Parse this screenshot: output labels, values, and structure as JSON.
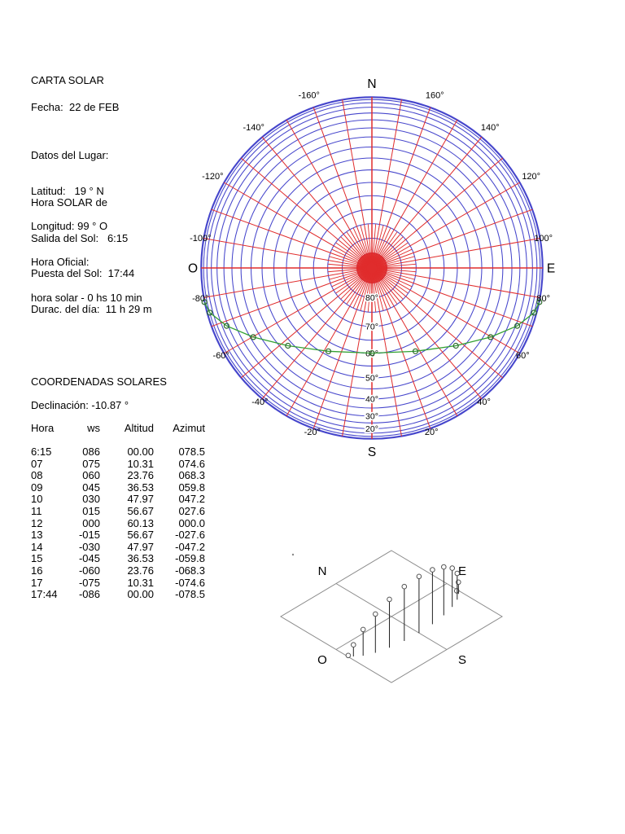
{
  "info": {
    "title": "CARTA SOLAR",
    "fecha": "Fecha:  22 de FEB",
    "lugar": [
      "Datos del Lugar:",
      "Latitud:   19 ° N",
      "Longitud: 99 ° O"
    ],
    "horario": [
      "Hora SOLAR de",
      "Salida del Sol:   6:15",
      "Puesta del Sol:  17:44",
      "Durac. del día:  11 h 29 m"
    ],
    "oficial": [
      "Hora Oficial:",
      "hora solar - 0 hs 10 min"
    ]
  },
  "coordinates": {
    "title": "COORDENADAS SOLARES",
    "declinacion": "Declinación: -10.87 °"
  },
  "solar_table": {
    "headers": [
      "Hora",
      "ws",
      "Altitud",
      "Azimut"
    ],
    "rows": [
      [
        "6:15",
        "086",
        "00.00",
        "078.5"
      ],
      [
        "07",
        "075",
        "10.31",
        "074.6"
      ],
      [
        "08",
        "060",
        "23.76",
        "068.3"
      ],
      [
        "09",
        "045",
        "36.53",
        "059.8"
      ],
      [
        "10",
        "030",
        "47.97",
        "047.2"
      ],
      [
        "11",
        "015",
        "56.67",
        "027.6"
      ],
      [
        "12",
        "000",
        "60.13",
        "000.0"
      ],
      [
        "13",
        "-015",
        "56.67",
        "-027.6"
      ],
      [
        "14",
        "-030",
        "47.97",
        "-047.2"
      ],
      [
        "15",
        "-045",
        "36.53",
        "-059.8"
      ],
      [
        "16",
        "-060",
        "23.76",
        "-068.3"
      ],
      [
        "17",
        "-075",
        "10.31",
        "-074.6"
      ],
      [
        "17:44",
        "-086",
        "00.00",
        "-078.5"
      ]
    ]
  },
  "chart_data": [
    {
      "name": "sun-path-polar",
      "type": "line",
      "projection": "polar, r = R*cos(altitude), azimuth 0° at S, positive toward E",
      "cardinals": {
        "north": "N",
        "east": "E",
        "south": "S",
        "west": "O"
      },
      "azimuth_labels": [
        {
          "az": -160,
          "label": "-160°"
        },
        {
          "az": -140,
          "label": "-140°"
        },
        {
          "az": -120,
          "label": "-120°"
        },
        {
          "az": -100,
          "label": "-100°"
        },
        {
          "az": -80,
          "label": "-80°"
        },
        {
          "az": -60,
          "label": "-60°"
        },
        {
          "az": -40,
          "label": "-40°"
        },
        {
          "az": -20,
          "label": "-20°"
        },
        {
          "az": 20,
          "label": "20°"
        },
        {
          "az": 40,
          "label": "40°"
        },
        {
          "az": 60,
          "label": "60°"
        },
        {
          "az": 80,
          "label": "80°"
        },
        {
          "az": 100,
          "label": "100°"
        },
        {
          "az": 120,
          "label": "120°"
        },
        {
          "az": 140,
          "label": "140°"
        },
        {
          "az": 160,
          "label": "160°"
        }
      ],
      "altitude_ring_labels": [
        {
          "alt": 80,
          "label": "80°"
        },
        {
          "alt": 70,
          "label": "70°"
        },
        {
          "alt": 60,
          "label": "60°"
        },
        {
          "alt": 50,
          "label": "50°"
        },
        {
          "alt": 40,
          "label": "40°"
        },
        {
          "alt": 30,
          "label": "30°"
        },
        {
          "alt": 20,
          "label": "20°"
        }
      ],
      "altitude_rings_step_deg": 5,
      "azimuth_rays_step_deg": 10,
      "series": [
        {
          "name": "sun position by hour",
          "hours": [
            "6:15",
            "07",
            "08",
            "09",
            "10",
            "11",
            "12",
            "13",
            "14",
            "15",
            "16",
            "17",
            "17:44"
          ],
          "azimuth_deg": [
            78.5,
            74.6,
            68.3,
            59.8,
            47.2,
            27.6,
            0.0,
            -27.6,
            -47.2,
            -59.8,
            -68.3,
            -74.6,
            -78.5
          ],
          "altitude_deg": [
            0.0,
            10.31,
            23.76,
            36.53,
            47.97,
            56.67,
            60.13,
            56.67,
            47.97,
            36.53,
            23.76,
            10.31,
            0.0
          ]
        }
      ],
      "colors": {
        "rings": "#4646cc",
        "rays": "#e02c2c",
        "path": "#33a133",
        "markers": "#2f6b2f"
      }
    },
    {
      "name": "sun-path-isometric",
      "type": "scatter",
      "corner_labels": {
        "north": "N",
        "east": "E",
        "west": "O",
        "south": "S"
      },
      "description": "isometric ground plane with vertical stems; stem height = sin(altitude), base at horizontal projection of sun vector",
      "colors": {
        "plane": "#8a8a8a",
        "stems": "#222222",
        "markers": "#555555"
      }
    }
  ]
}
